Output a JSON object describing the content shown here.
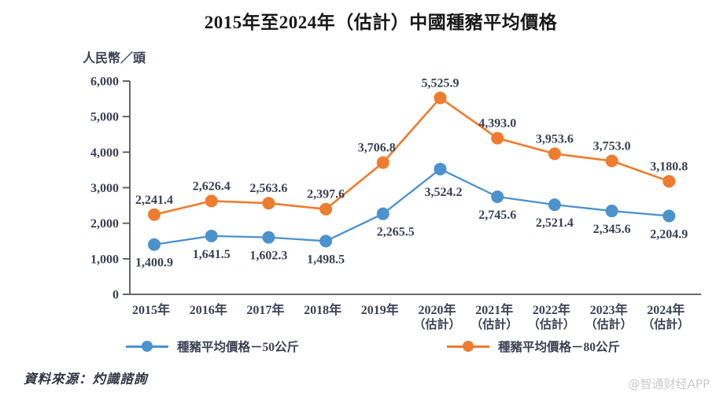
{
  "page": {
    "title": "2015年至2024年（估計）中國種豬平均價格",
    "y_axis_unit": "人民幣／頭",
    "source_note": "資料來源：灼識諮詢",
    "watermark": "@智通财经APP"
  },
  "chart_data": {
    "type": "line",
    "title": "2015年至2024年（估計）中國種豬平均價格",
    "ylabel": "人民幣／頭",
    "ylim": [
      0,
      6000
    ],
    "ytick_interval": 1000,
    "ytick_labels": [
      "0",
      "1,000",
      "2,000",
      "3,000",
      "4,000",
      "5,000",
      "6,000"
    ],
    "grid": false,
    "legend_position": "bottom",
    "categories": [
      "2015年",
      "2016年",
      "2017年",
      "2018年",
      "2019年",
      "2020年",
      "2021年",
      "2022年",
      "2023年",
      "2024年"
    ],
    "category_sublabels": [
      "",
      "",
      "",
      "",
      "",
      "（估計）",
      "（估計）",
      "（估計）",
      "（估計）",
      "（估計）"
    ],
    "series": [
      {
        "name": "種豬平均價格－50公斤",
        "color": "#4B92CE",
        "values": [
          1400.9,
          1641.5,
          1602.3,
          1498.5,
          2265.5,
          3524.2,
          2745.6,
          2521.4,
          2345.6,
          2204.9
        ],
        "value_labels": [
          "1,400.9",
          "1,641.5",
          "1,602.3",
          "1,498.5",
          "2,265.5",
          "3,524.2",
          "2,745.6",
          "2,521.4",
          "2,345.6",
          "2,204.9"
        ]
      },
      {
        "name": "種豬平均價格－80公斤",
        "color": "#EE7C2F",
        "values": [
          2241.4,
          2626.4,
          2563.6,
          2397.6,
          3706.8,
          5525.9,
          4393.0,
          3953.6,
          3753.0,
          3180.8
        ],
        "value_labels": [
          "2,241.4",
          "2,626.4",
          "2,563.6",
          "2,397.6",
          "3,706.8",
          "5,525.9",
          "4,393.0",
          "3,953.6",
          "3,753.0",
          "3,180.8"
        ]
      }
    ]
  }
}
